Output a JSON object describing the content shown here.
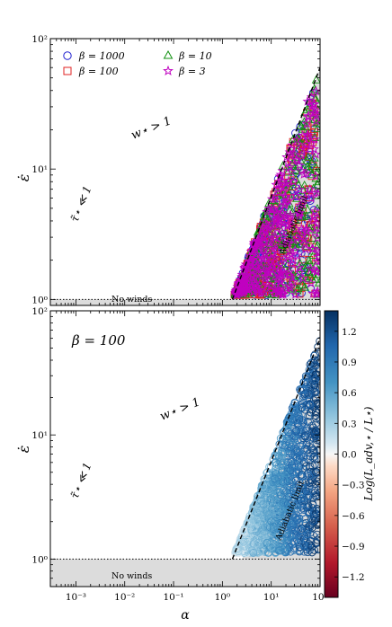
{
  "figure": {
    "panels": 2
  },
  "chart_data": [
    {
      "type": "scatter",
      "title": "",
      "xlabel": "",
      "ylabel": "ε̇",
      "xscale": "log",
      "yscale": "log",
      "xlim": [
        0.0003,
        100
      ],
      "ylim": [
        0.9,
        100
      ],
      "legend": {
        "placement": "top-left",
        "entries": [
          {
            "name": "β = 1000",
            "marker": "circle",
            "color": "#2020d0"
          },
          {
            "name": "β = 100",
            "marker": "square",
            "color": "#e02020"
          },
          {
            "name": "β = 10",
            "marker": "triangle",
            "color": "#109010"
          },
          {
            "name": "β = 3",
            "marker": "star",
            "color": "#c000c0"
          }
        ]
      },
      "annotations": {
        "wind_condition": "w⋆ > 1",
        "tau_condition": "τ̃⋆ ≪ 1",
        "adiabatic": "Adiabatic limit",
        "no_winds": "No winds"
      },
      "y_ticks": [
        "10⁰",
        "10¹",
        "10²"
      ],
      "adiabatic_limit_line": {
        "x": [
          1.6,
          100
        ],
        "y": [
          1.0,
          60
        ]
      },
      "no_winds_level": 1.0
    },
    {
      "type": "scatter",
      "title": "β = 100",
      "xlabel": "α",
      "ylabel": "ε̇",
      "xscale": "log",
      "yscale": "log",
      "xlim": [
        0.0003,
        100
      ],
      "ylim": [
        0.6,
        100
      ],
      "colorbar": {
        "label": "Log(L_adv,⋆ / L⋆)",
        "colormap": "RdBu",
        "range": [
          -1.4,
          1.4
        ],
        "ticks": [
          "1.2",
          "0.9",
          "0.6",
          "0.3",
          "0.0",
          "−0.3",
          "−0.6",
          "−0.9",
          "−1.2"
        ],
        "tick_values": [
          1.2,
          0.9,
          0.6,
          0.3,
          0.0,
          -0.3,
          -0.6,
          -0.9,
          -1.2
        ]
      },
      "annotations": {
        "wind_condition": "w⋆ > 1",
        "tau_condition": "τ̃⋆ ≪ 1",
        "adiabatic": "Adiabatic limit",
        "no_winds": "No winds"
      },
      "x_ticks": [
        "10⁻³",
        "10⁻²",
        "10⁻¹",
        "10⁰",
        "10¹",
        "10²"
      ],
      "y_ticks": [
        "10⁰",
        "10¹",
        "10²"
      ],
      "adiabatic_limit_line": {
        "x": [
          1.6,
          100
        ],
        "y": [
          1.0,
          60
        ]
      },
      "no_winds_level": 1.0
    }
  ],
  "colors": {
    "shade": "#dcdcdc",
    "frame": "#000000"
  }
}
